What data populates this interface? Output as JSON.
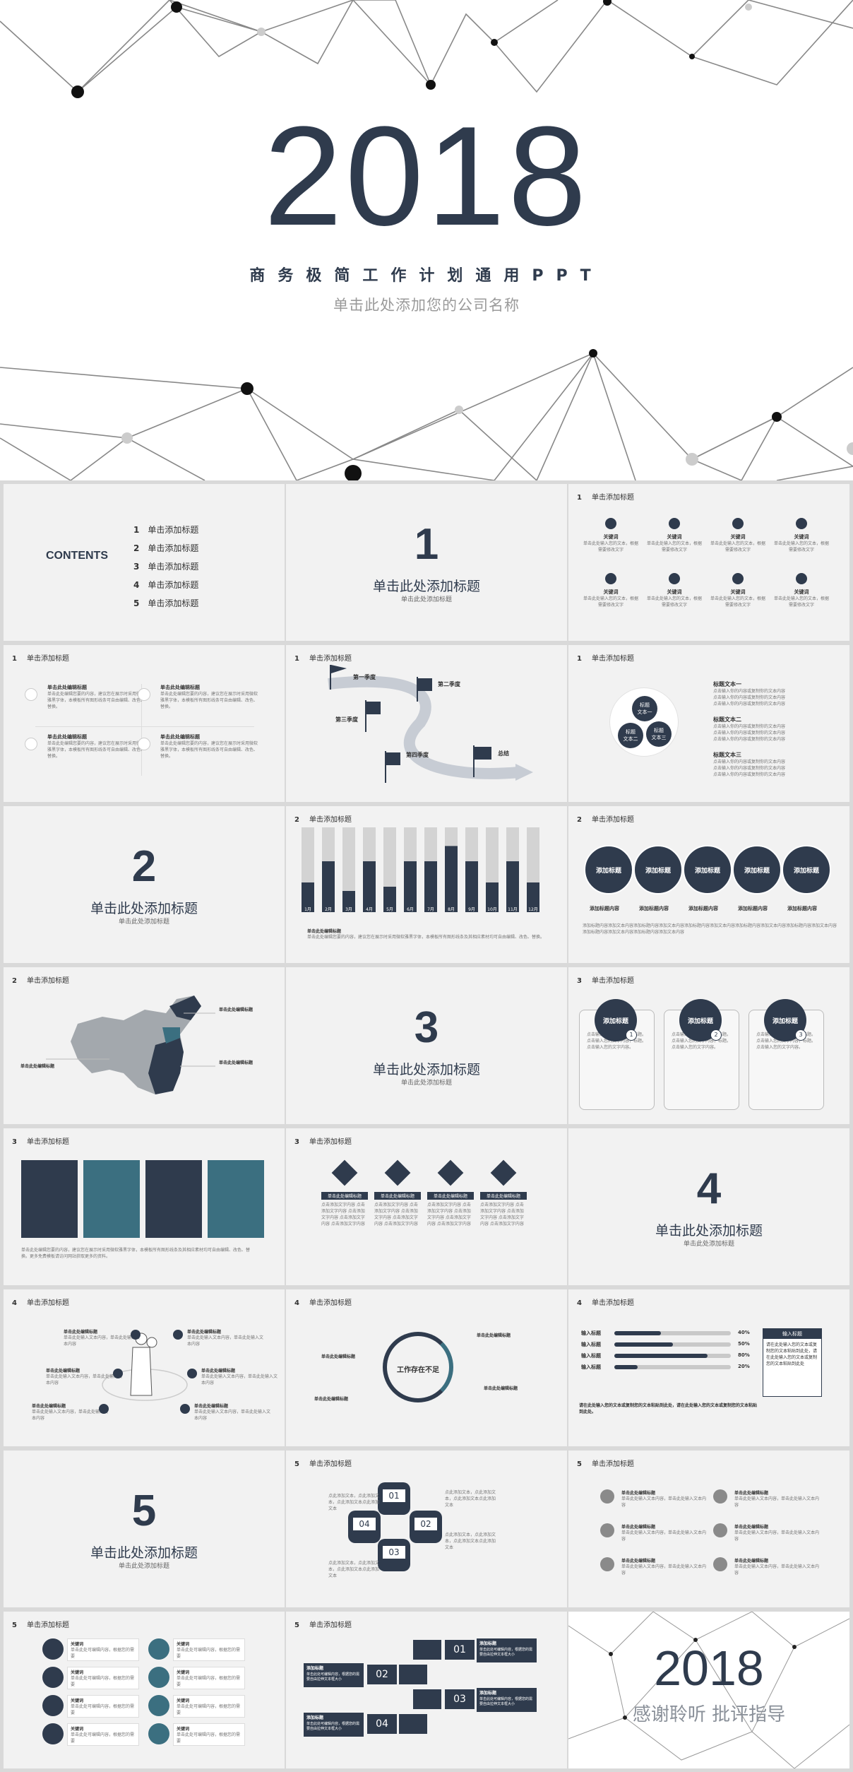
{
  "cover": {
    "year": "2018",
    "subtitle": "商务极简工作计划通用PPT",
    "company": "单击此处添加您的公司名称"
  },
  "contents": {
    "title": "CONTENTS",
    "items": [
      {
        "num": "1",
        "label": "单击添加标题"
      },
      {
        "num": "2",
        "label": "单击添加标题"
      },
      {
        "num": "3",
        "label": "单击添加标题"
      },
      {
        "num": "4",
        "label": "单击添加标题"
      },
      {
        "num": "5",
        "label": "单击添加标题"
      }
    ]
  },
  "section": {
    "title": "单击此处添加标题",
    "sub": "单击此处添加标题",
    "nums": [
      "1",
      "2",
      "3",
      "4",
      "5"
    ]
  },
  "slide_header": "单击添加标题",
  "keyword": "关键词",
  "click_title": "单击此处编辑标题",
  "stages": {
    "first": "第一季度",
    "second": "第二季度",
    "third": "第三季度",
    "fourth": "第四季度",
    "total": "总结"
  },
  "text_blocks": {
    "one": "标题文本一",
    "two": "标题文本二",
    "three": "标题文本三"
  },
  "venn": {
    "a": "标题\n文本一",
    "b": "标题\n文本二",
    "c": "标题\n文本三"
  },
  "bar_chart": {
    "labels": [
      "1月",
      "2月",
      "3月",
      "4月",
      "5月",
      "6月",
      "7月",
      "8月",
      "9月",
      "10月",
      "11月",
      "12月"
    ],
    "values": [
      0.35,
      0.6,
      0.25,
      0.6,
      0.3,
      0.6,
      0.6,
      0.78,
      0.6,
      0.35,
      0.6,
      0.35
    ]
  },
  "circles_row": {
    "label": "添加标题",
    "content": "添加标题内容"
  },
  "add_title_numbered": [
    "1",
    "2",
    "3"
  ],
  "problem": "工作存在不足",
  "progress": {
    "label": "输入标题",
    "values": [
      "40%",
      "50%",
      "80%",
      "20%"
    ],
    "fills": [
      0.4,
      0.5,
      0.8,
      0.2
    ],
    "box_title": "输入标题"
  },
  "quad": [
    "01",
    "02",
    "03",
    "04"
  ],
  "ending": {
    "year": "2018",
    "thanks": "感谢聆听 批评指导"
  },
  "colors": {
    "navy": "#2f3b4d",
    "teal": "#3b6f80",
    "bg": "#f2f2f2"
  }
}
